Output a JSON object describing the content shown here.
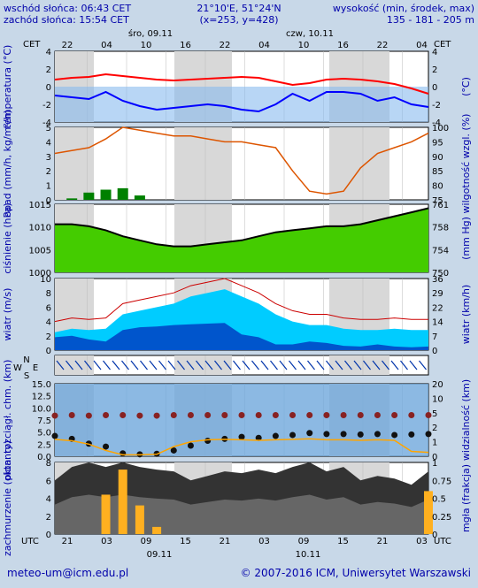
{
  "header": {
    "sunrise": "wschód słońca: 06:43 CET",
    "sunset": "zachód słońca: 15:54 CET",
    "coords": "21°10'E, 51°24'N",
    "grid": "(x=253,  y=428)",
    "elevation_label": "wysokość (min, środek, max)",
    "elevation_values": "135 - 181 - 205 m"
  },
  "top_axis": {
    "tz_left": "CET",
    "tz_right": "CET",
    "day1": "śro, 09.11",
    "day2": "czw, 10.11",
    "hours": [
      "22",
      "04",
      "10",
      "16",
      "22",
      "04",
      "10",
      "16",
      "22",
      "04"
    ]
  },
  "bottom_axis": {
    "tz_left": "UTC",
    "tz_right": "UTC",
    "hours": [
      "21",
      "03",
      "09",
      "15",
      "21",
      "03",
      "09",
      "15",
      "21",
      "03"
    ],
    "date1": "09.11",
    "date2": "10.11"
  },
  "footer": {
    "email": "meteo-um@icm.edu.pl",
    "copyright": "© 2007-2016 ICM, Uniwersytet Warszawski"
  },
  "colors": {
    "temperature": "#ff0000",
    "dewpoint": "#0000ff",
    "precip": "#008000",
    "humidity": "#dd5500",
    "pressure_fill": "#44cc00",
    "wind_fill": "#0055cc",
    "gust_fill": "#00ccff",
    "visibility": "#ffa500",
    "cloud": "#222222",
    "fog": "#ffb020"
  },
  "chart_data": [
    {
      "type": "line",
      "panel": "temperature",
      "ylabel_left": "temperatura (°C)",
      "ylabel_right": "(°C)",
      "ylim": [
        -4,
        4
      ],
      "yticks": [
        "4",
        "2",
        "0",
        "-2",
        "-4"
      ],
      "series": [
        {
          "values": [
            0.8,
            1.0,
            1.1,
            1.4,
            1.2,
            1.0,
            0.8,
            0.7,
            0.8,
            0.9,
            1.0,
            1.1,
            1.0,
            0.6,
            0.2,
            0.4,
            0.8,
            0.9,
            0.8,
            0.6,
            0.3,
            -0.2,
            -0.8
          ]
        },
        {
          "values": [
            -1.0,
            -1.2,
            -1.4,
            -0.6,
            -1.6,
            -2.2,
            -2.6,
            -2.4,
            -2.2,
            -2.0,
            -2.2,
            -2.6,
            -2.8,
            -2.0,
            -0.8,
            -1.6,
            -0.6,
            -0.6,
            -0.8,
            -1.6,
            -1.2,
            -2.0,
            -2.3
          ]
        }
      ]
    },
    {
      "type": "line",
      "panel": "precip_humidity",
      "ylabel_left": "opad (mm/h, kg/m²/h)",
      "ylabel_right": "wilgotność wzgl. (%)",
      "ylim_left": [
        0,
        5
      ],
      "ylim_right": [
        75,
        100
      ],
      "yticks_left": [
        "5",
        "4",
        "3",
        "2",
        "1",
        "0"
      ],
      "yticks_right": [
        "100",
        "95",
        "90",
        "85",
        "80",
        "75"
      ],
      "series": [
        {
          "values": [
            91,
            92,
            93,
            96,
            100,
            99,
            98,
            97,
            97,
            96,
            95,
            95,
            94,
            93,
            85,
            78,
            77,
            78,
            86,
            91,
            93,
            95,
            98
          ]
        },
        {
          "values": [
            0,
            0.1,
            0.5,
            0.7,
            0.8,
            0.3,
            0,
            0,
            0,
            0,
            0,
            0,
            0,
            0,
            0,
            0,
            0,
            0,
            0,
            0,
            0,
            0,
            0
          ]
        }
      ]
    },
    {
      "type": "area",
      "panel": "pressure",
      "ylabel_left": "ciśnienie (hPa)",
      "ylabel_right": "(mm Hg)",
      "ylim": [
        1000,
        1017
      ],
      "yticks_left": [
        "1015",
        "1010",
        "1005",
        "1000"
      ],
      "yticks_right": [
        "761",
        "758",
        "754",
        "750"
      ],
      "series": [
        {
          "values": [
            1012,
            1012,
            1011.5,
            1010.5,
            1009,
            1008,
            1007,
            1006.5,
            1006.5,
            1007,
            1007.5,
            1008,
            1009,
            1010,
            1010.5,
            1011,
            1011.5,
            1011.5,
            1012,
            1013,
            1014,
            1015,
            1016
          ]
        }
      ]
    },
    {
      "type": "area",
      "panel": "wind",
      "ylabel_left": "wiatr (m/s)",
      "ylabel_right": "wiatr (km/h)",
      "ylim": [
        0,
        10
      ],
      "yticks_left": [
        "10",
        "8",
        "6",
        "4",
        "2",
        "0"
      ],
      "yticks_right": [
        "36",
        "29",
        "22",
        "14",
        "7",
        "0"
      ],
      "series": [
        {
          "values": [
            1.8,
            2.0,
            1.5,
            1.2,
            2.8,
            3.2,
            3.3,
            3.5,
            3.6,
            3.7,
            3.8,
            2.2,
            1.8,
            0.8,
            0.8,
            1.2,
            1.0,
            0.6,
            0.5,
            0.8,
            0.5,
            0.4,
            0.5
          ]
        },
        {
          "values": [
            2.5,
            3.0,
            2.8,
            3.0,
            5.0,
            5.5,
            6.0,
            6.5,
            7.5,
            8.0,
            8.5,
            7.5,
            6.5,
            5.0,
            4.0,
            3.5,
            3.5,
            3.0,
            2.8,
            2.8,
            3.0,
            2.8,
            2.8
          ]
        }
      ]
    },
    {
      "type": "scatter",
      "panel": "wind_direction",
      "yticks": [
        "N",
        "W",
        "E",
        "S"
      ]
    },
    {
      "type": "line",
      "panel": "cloud_base_visibility",
      "ylabel_left": "pion. rozciągł. chm. (km)",
      "ylabel_right": "widzialność (km)",
      "ylim_left": [
        0,
        15
      ],
      "ylim_right": [
        0,
        20
      ],
      "yticks_left": [
        "15.0",
        "12.5",
        "10.0",
        "7.5",
        "5.0",
        "2.5",
        "0.0"
      ],
      "yticks_right": [
        "20",
        "10",
        "5",
        "2",
        "1",
        "0"
      ],
      "series": [
        {
          "values": [
            8.4,
            8.5,
            8.4,
            8.5,
            8.5,
            8.4,
            8.4,
            8.5,
            8.5,
            8.5,
            8.5,
            8.5,
            8.5,
            8.5,
            8.5,
            8.5,
            8.5,
            8.5,
            8.5,
            8.5,
            8.5,
            8.5,
            8.5
          ]
        },
        {
          "values": [
            4.2,
            3.6,
            2.6,
            2.0,
            0.6,
            0.4,
            0.5,
            1.2,
            2.2,
            3.2,
            3.6,
            4.0,
            3.8,
            4.2,
            4.4,
            4.8,
            4.6,
            4.6,
            4.5,
            4.6,
            4.4,
            4.5,
            4.6
          ]
        }
      ]
    },
    {
      "type": "area",
      "panel": "cloud_fog",
      "ylabel_left": "zachmurzenie (oktanty)",
      "ylabel_right": "mgła (frakcja)",
      "ylim_left": [
        0,
        8
      ],
      "ylim_right": [
        0,
        1
      ],
      "yticks_left": [
        "8",
        "6",
        "4",
        "2",
        "0"
      ],
      "yticks_right": [
        "1",
        "0.75",
        "0.5",
        "0.25",
        "0"
      ],
      "series": [
        {
          "values": [
            6,
            7.5,
            8,
            7.5,
            8,
            7.5,
            7.2,
            7,
            6,
            6.5,
            7,
            6.8,
            7.2,
            6.8,
            7.5,
            8,
            7,
            7.5,
            6,
            6.5,
            6.2,
            5.5,
            7
          ]
        },
        {
          "values": [
            0,
            0,
            0,
            0.55,
            0.9,
            0.4,
            0.1,
            0,
            0,
            0,
            0,
            0,
            0,
            0,
            0,
            0,
            0,
            0,
            0,
            0,
            0,
            0,
            0.6
          ]
        }
      ]
    }
  ]
}
